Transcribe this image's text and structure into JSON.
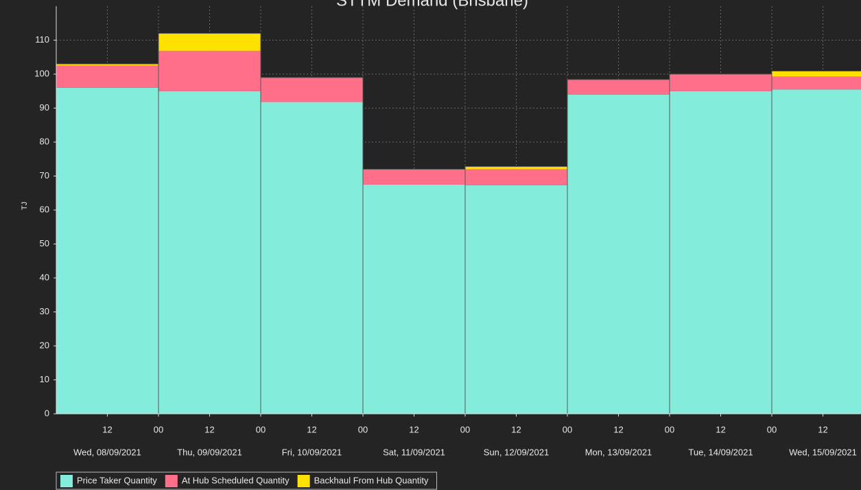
{
  "chart_data": {
    "type": "stacked_bar",
    "title": "STTM Demand (Brisbane)",
    "y_label": "TJ",
    "categories": [
      "Wed, 08/09/2021",
      "Thu, 09/09/2021",
      "Fri, 10/09/2021",
      "Sat, 11/09/2021",
      "Sun, 12/09/2021",
      "Mon, 13/09/2021",
      "Tue, 14/09/2021",
      "Wed, 15/09/2021"
    ],
    "series": [
      {
        "name": "Price Taker Quantity",
        "color": "#84ecdb",
        "values": [
          96,
          95,
          91.8,
          67.5,
          67.3,
          94,
          95,
          95.5
        ]
      },
      {
        "name": "At Hub Scheduled Quantity",
        "color": "#ff6f89",
        "values": [
          6.5,
          11.8,
          7.2,
          4.5,
          4.7,
          4.4,
          5,
          3.8
        ]
      },
      {
        "name": "Backhaul From Hub Quantity",
        "color": "#ffe100",
        "values": [
          0.5,
          5.2,
          0,
          0,
          0.8,
          0,
          0,
          1.6
        ]
      }
    ],
    "ylim": [
      0,
      120
    ],
    "yticks": [
      0,
      10,
      20,
      30,
      40,
      50,
      60,
      70,
      80,
      90,
      100,
      110
    ],
    "xlim": [
      0,
      7.87
    ],
    "xticks": [
      {
        "value": 0.5,
        "label": "12"
      },
      {
        "value": 1,
        "label": "00"
      },
      {
        "value": 1.5,
        "label": "12"
      },
      {
        "value": 2,
        "label": "00"
      },
      {
        "value": 2.5,
        "label": "12"
      },
      {
        "value": 3,
        "label": "00"
      },
      {
        "value": 3.5,
        "label": "12"
      },
      {
        "value": 4,
        "label": "00"
      },
      {
        "value": 4.5,
        "label": "12"
      },
      {
        "value": 5,
        "label": "00"
      },
      {
        "value": 5.5,
        "label": "12"
      },
      {
        "value": 6,
        "label": "00"
      },
      {
        "value": 6.5,
        "label": "12"
      },
      {
        "value": 7,
        "label": "00"
      },
      {
        "value": 7.5,
        "label": "12"
      }
    ],
    "grid": true,
    "legend": "bottom-left"
  }
}
